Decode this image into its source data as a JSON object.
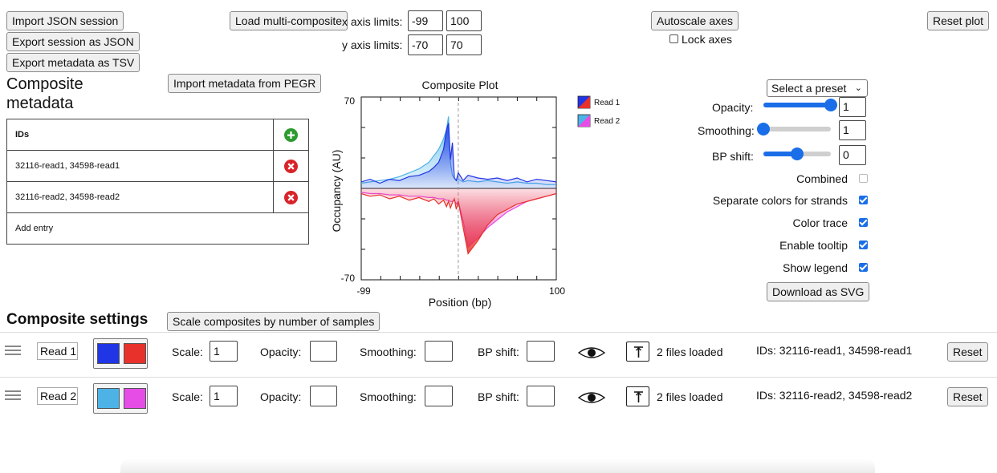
{
  "top": {
    "import_json": "Import JSON session",
    "export_json": "Export session as JSON",
    "export_tsv": "Export metadata as TSV",
    "load_multi": "Load multi-composite",
    "autoscale": "Autoscale axes",
    "lock_axes": "Lock axes",
    "reset_plot": "Reset plot"
  },
  "axes": {
    "x_label": "x axis limits:",
    "x_min": "-99",
    "x_max": "100",
    "y_label": "y axis limits:",
    "y_min": "-70",
    "y_max": "70"
  },
  "metadata": {
    "title": "Composite metadata",
    "import_pegr": "Import metadata from PEGR",
    "header": "IDs",
    "rows": [
      "32116-read1, 34598-read1",
      "32116-read2, 34598-read2"
    ],
    "add_entry": "Add entry"
  },
  "plot": {
    "title": "Composite Plot",
    "ylabel": "Occupancy (AU)",
    "xlabel": "Position (bp)",
    "y_max_tick": "70",
    "y_min_tick": "-70",
    "x_min_tick": "-99",
    "x_max_tick": "100",
    "legend": [
      "Read 1",
      "Read 2"
    ]
  },
  "chart_data": {
    "type": "area",
    "title": "Composite Plot",
    "xlabel": "Position (bp)",
    "ylabel": "Occupancy (AU)",
    "xlim": [
      -99,
      100
    ],
    "ylim": [
      -70,
      70
    ],
    "series": [
      {
        "name": "Read 1",
        "colors": [
          "#1f35e6",
          "#e8312a"
        ],
        "x": [
          -99,
          -90,
          -80,
          -70,
          -60,
          -50,
          -40,
          -30,
          -25,
          -20,
          -15,
          -12,
          -10,
          -8,
          -6,
          -4,
          -2,
          0,
          5,
          10,
          20,
          30,
          40,
          50,
          60,
          70,
          80,
          90,
          100
        ],
        "forward": [
          5,
          7,
          4,
          7,
          6,
          9,
          10,
          13,
          16,
          20,
          30,
          45,
          50,
          22,
          35,
          8,
          6,
          12,
          6,
          10,
          8,
          7,
          8,
          6,
          8,
          5,
          7,
          6,
          5
        ],
        "reverse": [
          -4,
          -6,
          -5,
          -8,
          -6,
          -9,
          -7,
          -10,
          -8,
          -12,
          -9,
          -14,
          -10,
          -15,
          -11,
          -8,
          -16,
          -10,
          -30,
          -50,
          -40,
          -28,
          -20,
          -16,
          -12,
          -10,
          -8,
          -6,
          -4
        ]
      },
      {
        "name": "Read 2",
        "colors": [
          "#4db3e6",
          "#e64ce6"
        ],
        "x": [
          -99,
          -90,
          -80,
          -70,
          -60,
          -50,
          -40,
          -30,
          -25,
          -20,
          -15,
          -12,
          -10,
          -8,
          -6,
          -4,
          -2,
          0,
          5,
          10,
          20,
          30,
          40,
          50,
          60,
          70,
          80,
          90,
          100
        ],
        "forward": [
          4,
          5,
          6,
          7,
          9,
          12,
          15,
          20,
          25,
          30,
          38,
          45,
          55,
          20,
          10,
          8,
          6,
          7,
          5,
          6,
          5,
          6,
          5,
          4,
          5,
          4,
          4,
          3,
          3
        ],
        "reverse": [
          -3,
          -4,
          -4,
          -5,
          -5,
          -6,
          -6,
          -7,
          -7,
          -8,
          -8,
          -9,
          -9,
          -10,
          -10,
          -9,
          -12,
          -10,
          -25,
          -45,
          -38,
          -30,
          -24,
          -18,
          -14,
          -10,
          -8,
          -6,
          -4
        ]
      }
    ]
  },
  "settings": {
    "preset": "Select a preset",
    "opacity_label": "Opacity:",
    "opacity_value": "1",
    "opacity_level": 1.0,
    "smoothing_label": "Smoothing:",
    "smoothing_value": "1",
    "smoothing_level": 0.0,
    "bpshift_label": "BP shift:",
    "bpshift_value": "0",
    "bpshift_level": 0.5,
    "combined": "Combined",
    "separate_colors": "Separate colors for strands",
    "color_trace": "Color trace",
    "enable_tooltip": "Enable tooltip",
    "show_legend": "Show legend",
    "download_svg": "Download as SVG"
  },
  "composite": {
    "title": "Composite settings",
    "scale_btn": "Scale composites by number of samples",
    "scale_label": "Scale:",
    "opacity_label": "Opacity:",
    "smoothing_label": "Smoothing:",
    "bpshift_label": "BP shift:",
    "reset": "Reset",
    "rows": [
      {
        "name": "Read 1",
        "color1": "#1f35e6",
        "color2": "#e8312a",
        "scale": "1",
        "files": "2 files loaded",
        "ids": "IDs: 32116-read1, 34598-read1"
      },
      {
        "name": "Read 2",
        "color1": "#4db3e6",
        "color2": "#e64ce6",
        "scale": "1",
        "files": "2 files loaded",
        "ids": "IDs: 32116-read2, 34598-read2"
      }
    ]
  }
}
